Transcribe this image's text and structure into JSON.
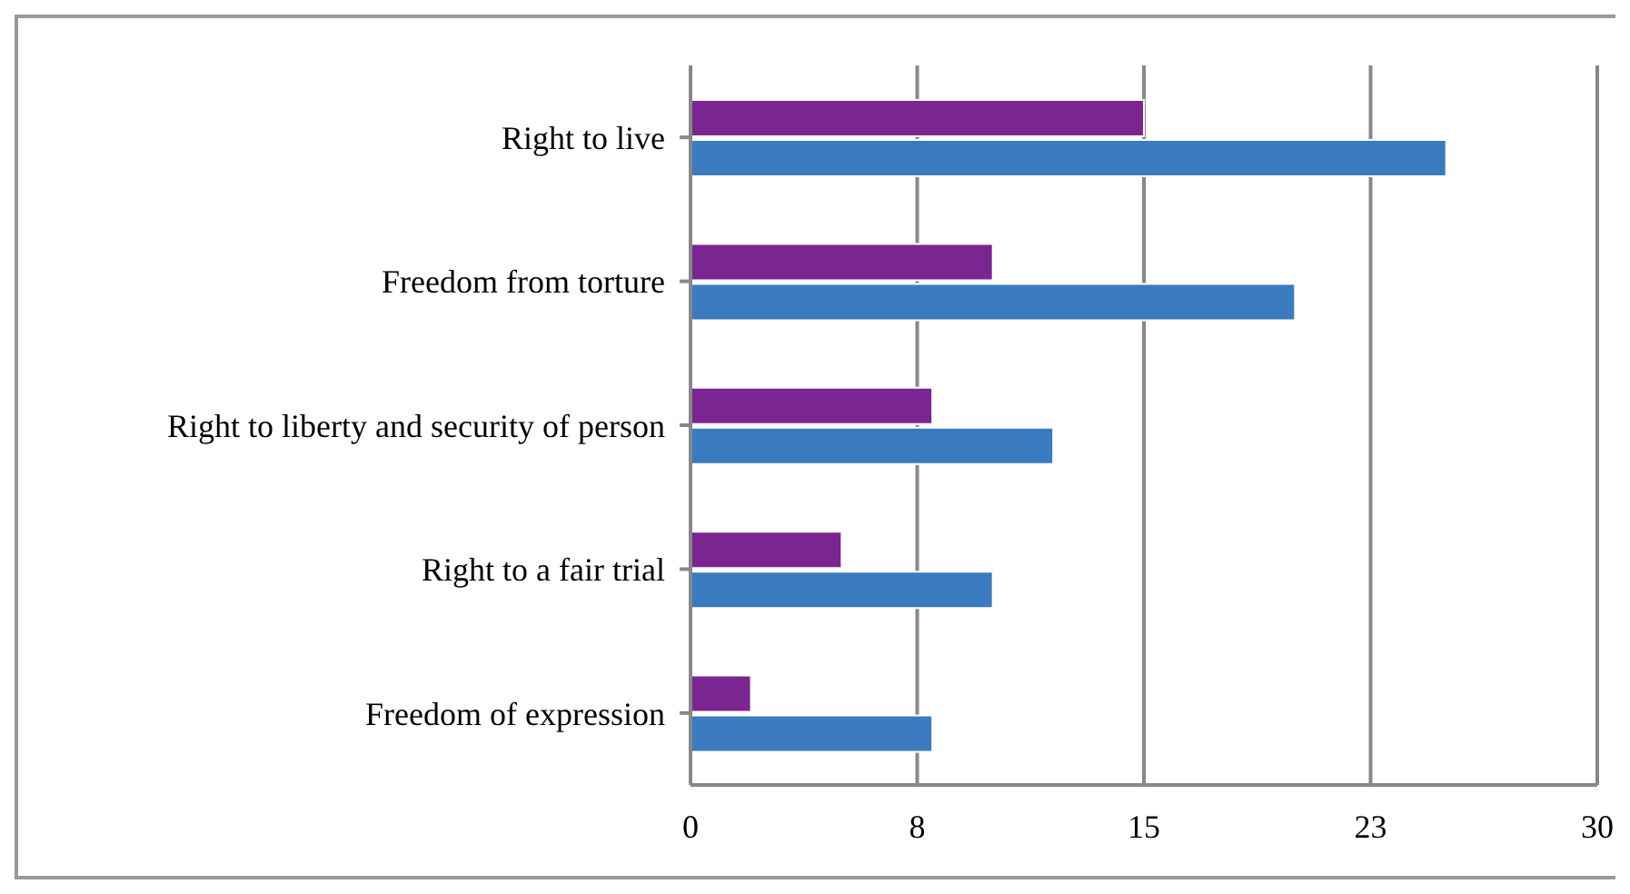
{
  "chart_data": {
    "type": "bar",
    "orientation": "horizontal",
    "categories": [
      "Right to live",
      "Freedom from torture",
      "Right to liberty and security of person",
      "Right to a fair trial",
      "Freedom of expression"
    ],
    "series": [
      {
        "color": "#7b2590",
        "values": [
          15,
          10,
          8,
          5,
          2
        ]
      },
      {
        "color": "#3a7bbf",
        "values": [
          25,
          20,
          12,
          10,
          8
        ]
      }
    ],
    "xlim": [
      0,
      30
    ],
    "xticks": [
      0,
      {
        "value": 7.5,
        "label": "8"
      },
      15,
      {
        "value": 22.5,
        "label": "23"
      },
      30
    ],
    "grid": "x",
    "legend": false
  }
}
